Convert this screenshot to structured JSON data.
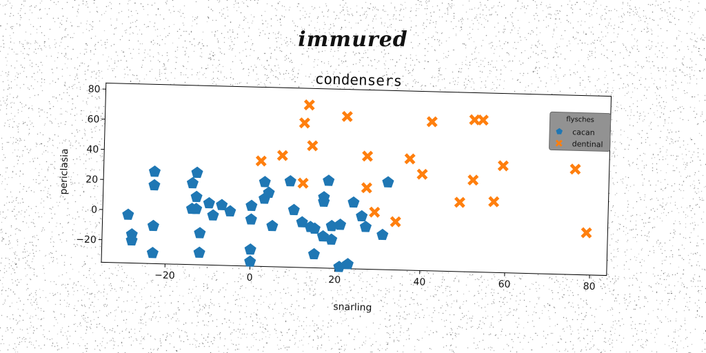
{
  "suptitle": "immured",
  "chart_data": {
    "type": "scatter",
    "title": "condensers",
    "xlabel": "snarling",
    "ylabel": "periclasia",
    "xlim": [
      -35,
      84
    ],
    "ylim": [
      -35,
      84
    ],
    "xticks": [
      -20,
      0,
      20,
      40,
      60,
      80
    ],
    "yticks": [
      -20,
      0,
      20,
      40,
      60,
      80
    ],
    "xtick_labels": [
      "−20",
      "0",
      "20",
      "40",
      "60",
      "80"
    ],
    "ytick_labels": [
      "−20",
      "0",
      "20",
      "40",
      "60",
      "80"
    ],
    "grid": false,
    "legend": {
      "title": "flysches",
      "placement": "top-right"
    },
    "series": [
      {
        "name": "cacan",
        "marker": "pentagon",
        "color": "#1f77b4",
        "points": [
          [
            -29,
            -3
          ],
          [
            -28,
            -16
          ],
          [
            -28,
            -20
          ],
          [
            -23,
            26
          ],
          [
            -23,
            17
          ],
          [
            -23,
            -10
          ],
          [
            -23,
            -28
          ],
          [
            -14,
            19
          ],
          [
            -14,
            2
          ],
          [
            -13,
            26
          ],
          [
            -13,
            10
          ],
          [
            -13,
            2
          ],
          [
            -12,
            -14
          ],
          [
            -12,
            -27
          ],
          [
            -10,
            6
          ],
          [
            -9,
            -2
          ],
          [
            -7,
            5
          ],
          [
            -5,
            1
          ],
          [
            0,
            5
          ],
          [
            0,
            -4
          ],
          [
            0,
            -24
          ],
          [
            0,
            -32
          ],
          [
            3,
            21
          ],
          [
            3,
            10
          ],
          [
            4,
            14
          ],
          [
            5,
            -8
          ],
          [
            9,
            22
          ],
          [
            10,
            3
          ],
          [
            12,
            -5
          ],
          [
            14,
            -8
          ],
          [
            15,
            -9
          ],
          [
            15,
            -26
          ],
          [
            17,
            12
          ],
          [
            17,
            9
          ],
          [
            17,
            -14
          ],
          [
            18,
            23
          ],
          [
            19,
            -16
          ],
          [
            19,
            -7
          ],
          [
            21,
            -6
          ],
          [
            21,
            -34
          ],
          [
            23,
            -32
          ],
          [
            24,
            9
          ],
          [
            26,
            0
          ],
          [
            27,
            -7
          ],
          [
            31,
            -12
          ],
          [
            32,
            23
          ]
        ]
      },
      {
        "name": "dentinal",
        "marker": "x",
        "color": "#ff7f0e",
        "points": [
          [
            2,
            35
          ],
          [
            7,
            39
          ],
          [
            12,
            61
          ],
          [
            12,
            21
          ],
          [
            13,
            73
          ],
          [
            14,
            46
          ],
          [
            22,
            66
          ],
          [
            27,
            19
          ],
          [
            27,
            40
          ],
          [
            29,
            3
          ],
          [
            34,
            -3
          ],
          [
            37,
            39
          ],
          [
            40,
            29
          ],
          [
            42,
            64
          ],
          [
            49,
            11
          ],
          [
            52,
            26
          ],
          [
            52,
            66
          ],
          [
            54,
            66
          ],
          [
            57,
            12
          ],
          [
            59,
            36
          ],
          [
            76,
            35
          ],
          [
            79,
            -7
          ]
        ]
      }
    ]
  }
}
